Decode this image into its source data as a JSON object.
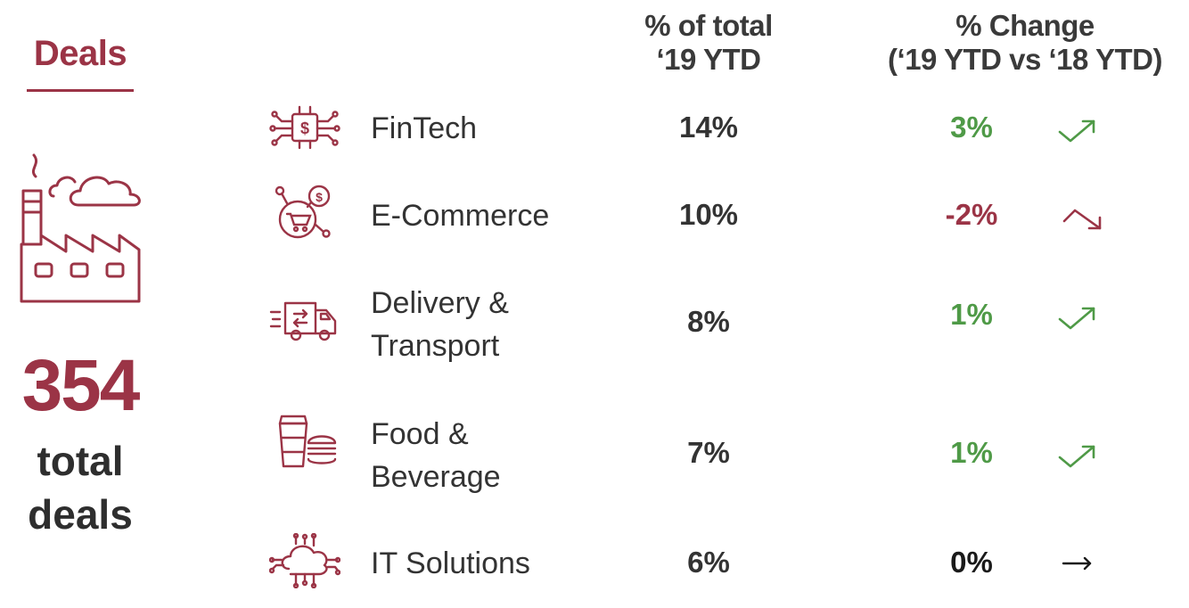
{
  "header": {
    "title": "Deals",
    "col_pct_line1": "% of total",
    "col_pct_line2": "‘19 YTD",
    "col_change_line1": "% Change",
    "col_change_line2": "(‘19 YTD vs ‘18 YTD)"
  },
  "summary": {
    "total_number": "354",
    "total_label_line1": "total",
    "total_label_line2": "deals",
    "icon": "factory-icon"
  },
  "rows": [
    {
      "label_line1": "FinTech",
      "label_line2": "",
      "pct": "14%",
      "change": "3%",
      "trend": "up",
      "icon": "fintech-chip-icon"
    },
    {
      "label_line1": "E-Commerce",
      "label_line2": "",
      "pct": "10%",
      "change": "-2%",
      "trend": "down",
      "icon": "ecommerce-cart-icon"
    },
    {
      "label_line1": "Delivery &",
      "label_line2": "Transport",
      "pct": "8%",
      "change": "1%",
      "trend": "up",
      "icon": "delivery-truck-icon"
    },
    {
      "label_line1": "Food &",
      "label_line2": "Beverage",
      "pct": "7%",
      "change": "1%",
      "trend": "up",
      "icon": "food-drink-burger-icon"
    },
    {
      "label_line1": "IT Solutions",
      "label_line2": "",
      "pct": "6%",
      "change": "0%",
      "trend": "flat",
      "icon": "cloud-circuit-icon"
    }
  ],
  "colors": {
    "accent": "#9b3446",
    "positive": "#4f9a47",
    "negative": "#9b3446",
    "neutral": "#1a1a1a",
    "text": "#333333"
  }
}
